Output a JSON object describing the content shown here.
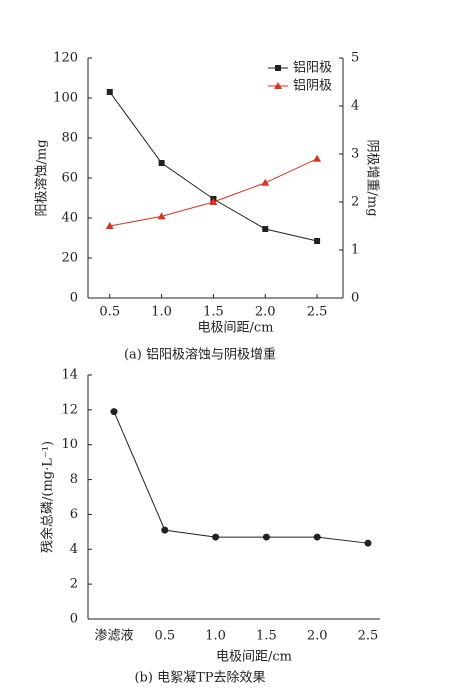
{
  "chart_data": [
    {
      "type": "line",
      "caption": "(a) 铝阳极溶蚀与阴极增重",
      "x_label": "电极间距/cm",
      "y_label": "阳极溶蚀/mg",
      "y2_label": "阴极增重/mg",
      "x": [
        0.5,
        1,
        1.5,
        2,
        2.5
      ],
      "xlim": [
        0.29,
        2.75
      ],
      "xticks": [
        0.5,
        {
          "value": 1,
          "label": "1.0"
        },
        1.5,
        {
          "value": 2,
          "label": "2.0"
        },
        2.5
      ],
      "ylim": [
        0,
        120
      ],
      "yticks": [
        0,
        20,
        40,
        60,
        80,
        100,
        120
      ],
      "y2lim": [
        0,
        5
      ],
      "y2ticks": [
        0,
        1,
        2,
        3,
        4,
        5
      ],
      "legend": "top-right",
      "series": [
        {
          "name": "铝阳极",
          "color": "#222222",
          "marker": "square",
          "values": [
            103,
            67.5,
            49.5,
            34.5,
            28.5
          ]
        },
        {
          "name": "铝阴极",
          "color": "#e0301e",
          "marker": "triangle",
          "axis": "y2",
          "values": [
            1.5,
            1.7,
            2.0,
            2.4,
            2.9
          ]
        }
      ]
    },
    {
      "type": "line",
      "caption": "(b) 电絮凝TP去除效果",
      "x_label": "电极间距/cm",
      "y_label": "残余总磷/(mg·L⁻¹)",
      "categories": [
        "渗滤液",
        "0.5",
        "1.0",
        "1.5",
        "2.0",
        "2.5"
      ],
      "ylim": [
        0,
        14
      ],
      "yticks": [
        0,
        2,
        4,
        6,
        8,
        10,
        12,
        14
      ],
      "series": [
        {
          "color": "#222222",
          "marker": "circle",
          "values": [
            11.9,
            5.1,
            4.7,
            4.7,
            4.7,
            4.35
          ]
        }
      ]
    }
  ]
}
